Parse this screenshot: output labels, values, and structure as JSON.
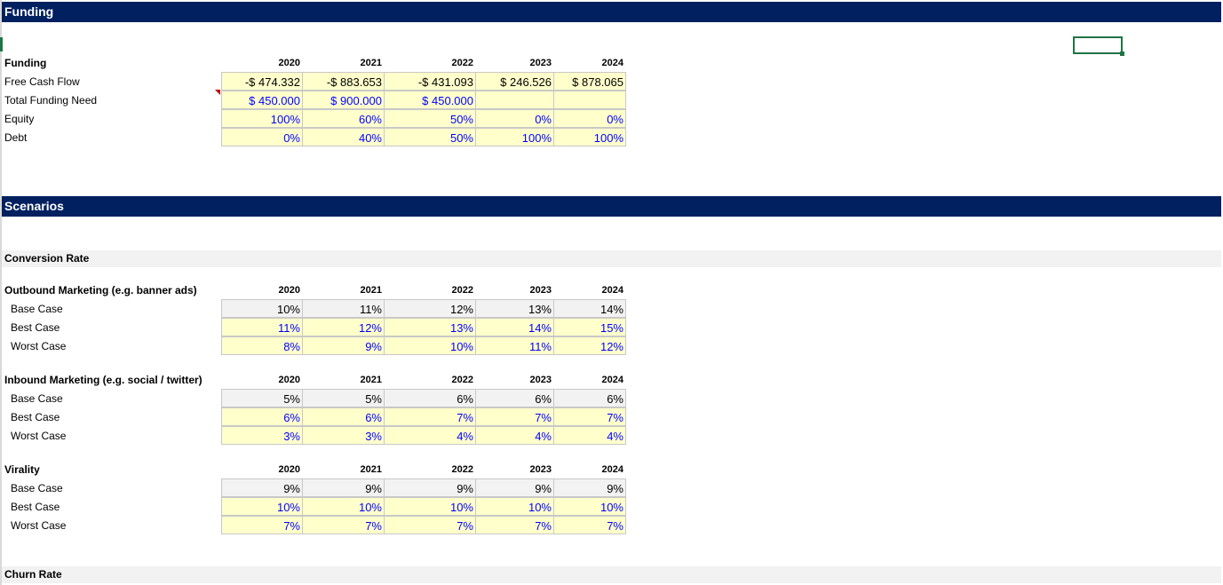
{
  "funding_band": "Funding",
  "scenarios_band": "Scenarios",
  "funding": {
    "title": "Funding",
    "years": [
      "2020",
      "2021",
      "2022",
      "2023",
      "2024"
    ],
    "rows": [
      {
        "label": "Free Cash Flow",
        "values": [
          "-$ 474.332",
          "-$ 883.653",
          "-$ 431.093",
          "$ 246.526",
          "$ 878.065"
        ]
      },
      {
        "label": "Total Funding Need",
        "values": [
          "$ 450.000",
          "$ 900.000",
          "$ 450.000",
          "",
          ""
        ]
      },
      {
        "label": "Equity",
        "values": [
          "100%",
          "60%",
          "50%",
          "0%",
          "0%"
        ]
      },
      {
        "label": "Debt",
        "values": [
          "0%",
          "40%",
          "50%",
          "100%",
          "100%"
        ]
      }
    ]
  },
  "conversion_rate_label": "Conversion Rate",
  "outbound": {
    "title": "Outbound Marketing (e.g. banner ads)",
    "years": [
      "2020",
      "2021",
      "2022",
      "2023",
      "2024"
    ],
    "rows": [
      {
        "label": "Base Case",
        "values": [
          "10%",
          "11%",
          "12%",
          "13%",
          "14%"
        ]
      },
      {
        "label": "Best Case",
        "values": [
          "11%",
          "12%",
          "13%",
          "14%",
          "15%"
        ]
      },
      {
        "label": "Worst Case",
        "values": [
          "8%",
          "9%",
          "10%",
          "11%",
          "12%"
        ]
      }
    ]
  },
  "inbound": {
    "title": "Inbound Marketing (e.g. social / twitter)",
    "years": [
      "2020",
      "2021",
      "2022",
      "2023",
      "2024"
    ],
    "rows": [
      {
        "label": "Base Case",
        "values": [
          "5%",
          "5%",
          "6%",
          "6%",
          "6%"
        ]
      },
      {
        "label": "Best Case",
        "values": [
          "6%",
          "6%",
          "7%",
          "7%",
          "7%"
        ]
      },
      {
        "label": "Worst Case",
        "values": [
          "3%",
          "3%",
          "4%",
          "4%",
          "4%"
        ]
      }
    ]
  },
  "virality": {
    "title": "Virality",
    "years": [
      "2020",
      "2021",
      "2022",
      "2023",
      "2024"
    ],
    "rows": [
      {
        "label": "Base Case",
        "values": [
          "9%",
          "9%",
          "9%",
          "9%",
          "9%"
        ]
      },
      {
        "label": "Best Case",
        "values": [
          "10%",
          "10%",
          "10%",
          "10%",
          "10%"
        ]
      },
      {
        "label": "Worst Case",
        "values": [
          "7%",
          "7%",
          "7%",
          "7%",
          "7%"
        ]
      }
    ]
  },
  "churn_rate_label": "Churn Rate",
  "colors": {
    "header_band": "#002060",
    "input_fill": "#ffffcc",
    "input_text": "#0000ff",
    "base_fill": "#f2f2f2",
    "selection": "#217346"
  }
}
